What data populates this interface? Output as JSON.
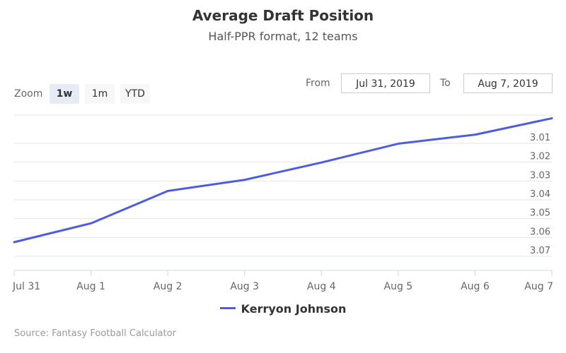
{
  "chart_data": {
    "type": "line",
    "title": "Average Draft Position",
    "subtitle": "Half-PPR format, 12 teams",
    "categories": [
      "Jul 31",
      "Aug 1",
      "Aug 2",
      "Aug 3",
      "Aug 4",
      "Aug 5",
      "Aug 6",
      "Aug 7"
    ],
    "series": [
      {
        "name": "Kerryon Johnson",
        "color": "#4d5de0",
        "values": [
          3.0625,
          3.0525,
          3.0353,
          3.0294,
          3.0202,
          3.0102,
          3.0054,
          2.9967
        ]
      }
    ],
    "yaxis": {
      "reversed": true,
      "position": "right",
      "range": [
        2.995,
        3.0775
      ],
      "ticks": [
        3.01,
        3.02,
        3.03,
        3.04,
        3.05,
        3.06,
        3.07
      ],
      "tick_labels": [
        "3.01",
        "3.02",
        "3.03",
        "3.04",
        "3.05",
        "3.06",
        "3.07"
      ]
    },
    "grid": true,
    "legend": "bottom-center"
  },
  "controls": {
    "zoom_label": "Zoom",
    "zoom_buttons": [
      "1w",
      "1m",
      "YTD"
    ],
    "zoom_active": "1w",
    "from_label": "From",
    "from_value": "Jul 31, 2019",
    "to_label": "To",
    "to_value": "Aug 7, 2019"
  },
  "credits": "Source: Fantasy Football Calculator"
}
